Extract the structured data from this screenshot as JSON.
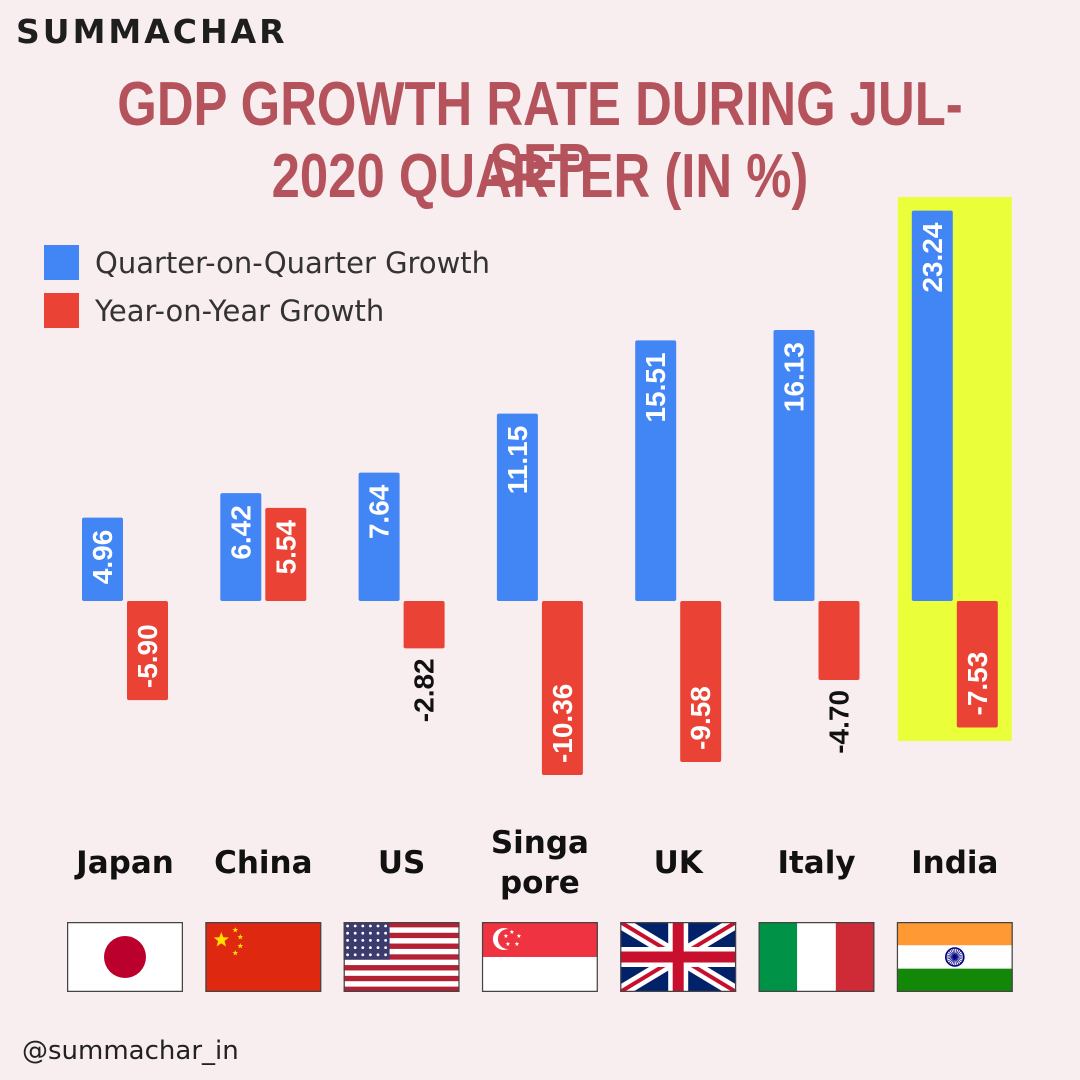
{
  "brand": "SUMMACHAR",
  "title_line1": "GDP GROWTH RATE DURING JUL-SEP",
  "title_line2": "2020 QUARTER (IN %)",
  "footer_handle": "@summachar_in",
  "colors": {
    "qoq": "#4285f4",
    "yoy": "#ea4335",
    "title": "#b5535c",
    "highlight": "#eaff3a",
    "background": "#f8eef0"
  },
  "chart_data": {
    "type": "bar",
    "title": "GDP GROWTH RATE DURING JUL-SEP 2020 QUARTER (IN %)",
    "categories": [
      "Japan",
      "China",
      "US",
      "Singapore",
      "UK",
      "Italy",
      "India"
    ],
    "category_display": [
      [
        "Japan"
      ],
      [
        "China"
      ],
      [
        "US"
      ],
      [
        "Singa",
        "pore"
      ],
      [
        "UK"
      ],
      [
        "Italy"
      ],
      [
        "India"
      ]
    ],
    "flag_icons": [
      "japan-flag-icon",
      "china-flag-icon",
      "us-flag-icon",
      "singapore-flag-icon",
      "uk-flag-icon",
      "italy-flag-icon",
      "india-flag-icon"
    ],
    "series": [
      {
        "name": "Quarter-on-Quarter Growth",
        "values": [
          4.96,
          6.42,
          7.64,
          11.15,
          15.51,
          16.13,
          23.24
        ]
      },
      {
        "name": "Year-on-Year Growth",
        "values": [
          -5.9,
          5.54,
          -2.82,
          -10.36,
          -9.58,
          -4.7,
          -7.53
        ]
      }
    ],
    "value_labels": [
      [
        "4.96",
        "6.42",
        "7.64",
        "11.15",
        "15.51",
        "16.13",
        "23.24"
      ],
      [
        "-5.90",
        "5.54",
        "-2.82",
        "-10.36",
        "-9.58",
        "-4.70",
        "-7.53"
      ]
    ],
    "highlighted_category": "India",
    "legend_position": "top-left",
    "grid": false,
    "xlabel": "",
    "ylabel": ""
  }
}
